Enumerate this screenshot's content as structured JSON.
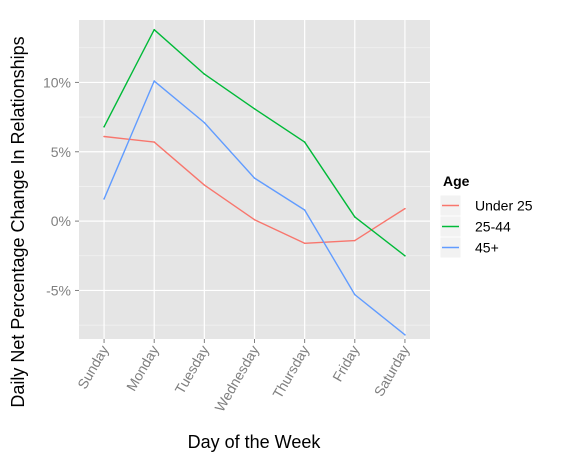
{
  "chart_data": {
    "type": "line",
    "xlabel": "Day of the Week",
    "ylabel": "Daily Net Percentage Change In Relationships",
    "categories": [
      "Sunday",
      "Monday",
      "Tuesday",
      "Wednesday",
      "Thursday",
      "Friday",
      "Saturday"
    ],
    "ylim": [
      -8.5,
      14.5
    ],
    "yticks": [
      -5,
      0,
      5,
      10
    ],
    "ytick_labels": [
      "-5%",
      "0%",
      "5%",
      "10%"
    ],
    "grid": true,
    "background": "#e5e5e5",
    "legend": {
      "title": "Age",
      "position": "right"
    },
    "series": [
      {
        "name": "Under 25",
        "color": "#f8766d",
        "values": [
          6.1,
          5.7,
          2.6,
          0.1,
          -1.6,
          -1.4,
          0.9
        ]
      },
      {
        "name": "25-44",
        "color": "#00ba38",
        "values": [
          6.8,
          13.8,
          10.6,
          8.1,
          5.7,
          0.3,
          -2.5
        ]
      },
      {
        "name": "45+",
        "color": "#619cff",
        "values": [
          1.6,
          10.1,
          7.1,
          3.1,
          0.8,
          -5.3,
          -8.2
        ]
      }
    ]
  }
}
